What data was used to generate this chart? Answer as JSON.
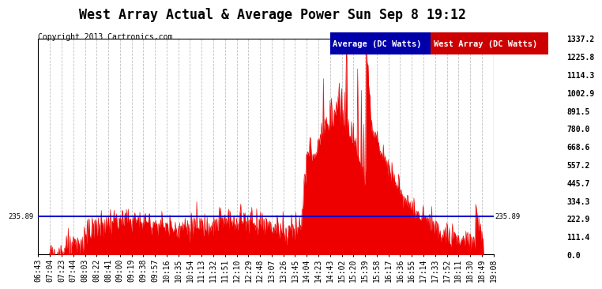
{
  "title": "West Array Actual & Average Power Sun Sep 8 19:12",
  "copyright": "Copyright 2013 Cartronics.com",
  "legend_avg_label": "Average (DC Watts)",
  "legend_west_label": "West Array (DC Watts)",
  "avg_value": 235.89,
  "y_max": 1337.2,
  "y_min": 0.0,
  "y_ticks": [
    0.0,
    111.4,
    222.9,
    334.3,
    445.7,
    557.2,
    668.6,
    780.0,
    891.5,
    1002.9,
    1114.3,
    1225.8,
    1337.2
  ],
  "x_labels": [
    "06:43",
    "07:04",
    "07:23",
    "07:44",
    "08:03",
    "08:22",
    "08:41",
    "09:00",
    "09:19",
    "09:38",
    "09:57",
    "10:16",
    "10:35",
    "10:54",
    "11:13",
    "11:32",
    "11:51",
    "12:10",
    "12:29",
    "12:48",
    "13:07",
    "13:26",
    "13:45",
    "14:04",
    "14:23",
    "14:43",
    "15:02",
    "15:20",
    "15:39",
    "15:58",
    "16:17",
    "16:36",
    "16:55",
    "17:14",
    "17:33",
    "17:52",
    "18:11",
    "18:30",
    "18:49",
    "19:08"
  ],
  "background_color": "#ffffff",
  "plot_bg_color": "#ffffff",
  "grid_color": "#bbbbbb",
  "area_color": "#ee0000",
  "avg_line_color": "#0000cc",
  "title_fontsize": 12,
  "copyright_fontsize": 7,
  "tick_fontsize": 7,
  "legend_fontsize": 7.5
}
